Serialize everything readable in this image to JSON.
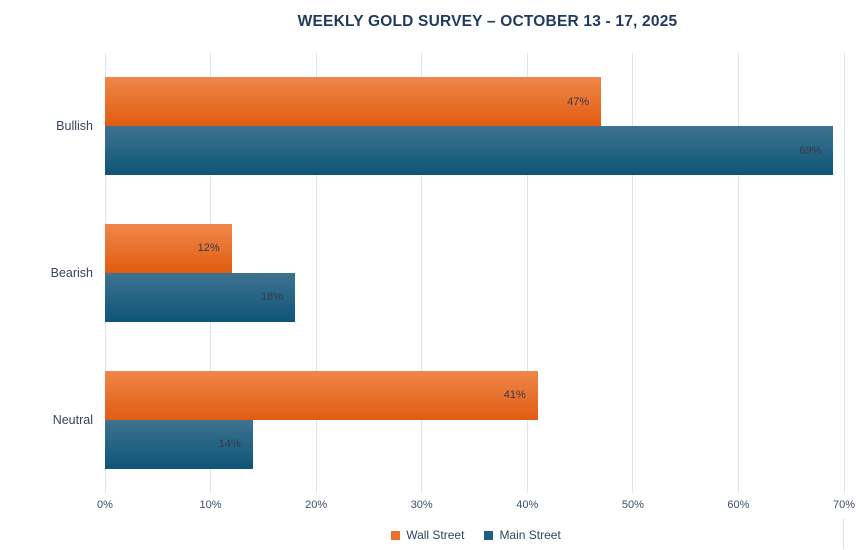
{
  "chart_data": {
    "type": "bar",
    "orientation": "horizontal",
    "title": "WEEKLY GOLD SURVEY – OCTOBER 13 - 17, 2025",
    "categories": [
      "Bullish",
      "Bearish",
      "Neutral"
    ],
    "series": [
      {
        "name": "Wall Street",
        "values": [
          47,
          12,
          41
        ],
        "color_top": "#EF874A",
        "color_bottom": "#E15C11",
        "legend_color": "#EC6F2D"
      },
      {
        "name": "Main Street",
        "values": [
          69,
          18,
          14
        ],
        "color_top": "#3E7390",
        "color_bottom": "#0E5578",
        "legend_color": "#1B5E83"
      }
    ],
    "x_ticks": [
      0,
      10,
      20,
      30,
      40,
      50,
      60,
      70
    ],
    "xlim": [
      0,
      70
    ],
    "x_tick_suffix": "%",
    "data_label_suffix": "%",
    "data_labels": "inside-end",
    "grid": "vertical",
    "gridline_color": "#DCE6F2",
    "legend_position": "bottom-center",
    "title_color": "#1F3A5E",
    "axis_text_color": "#3E4E66",
    "category_text_color": "#37465E",
    "data_label_color": "#343B48",
    "background": "#FFFFFF"
  }
}
